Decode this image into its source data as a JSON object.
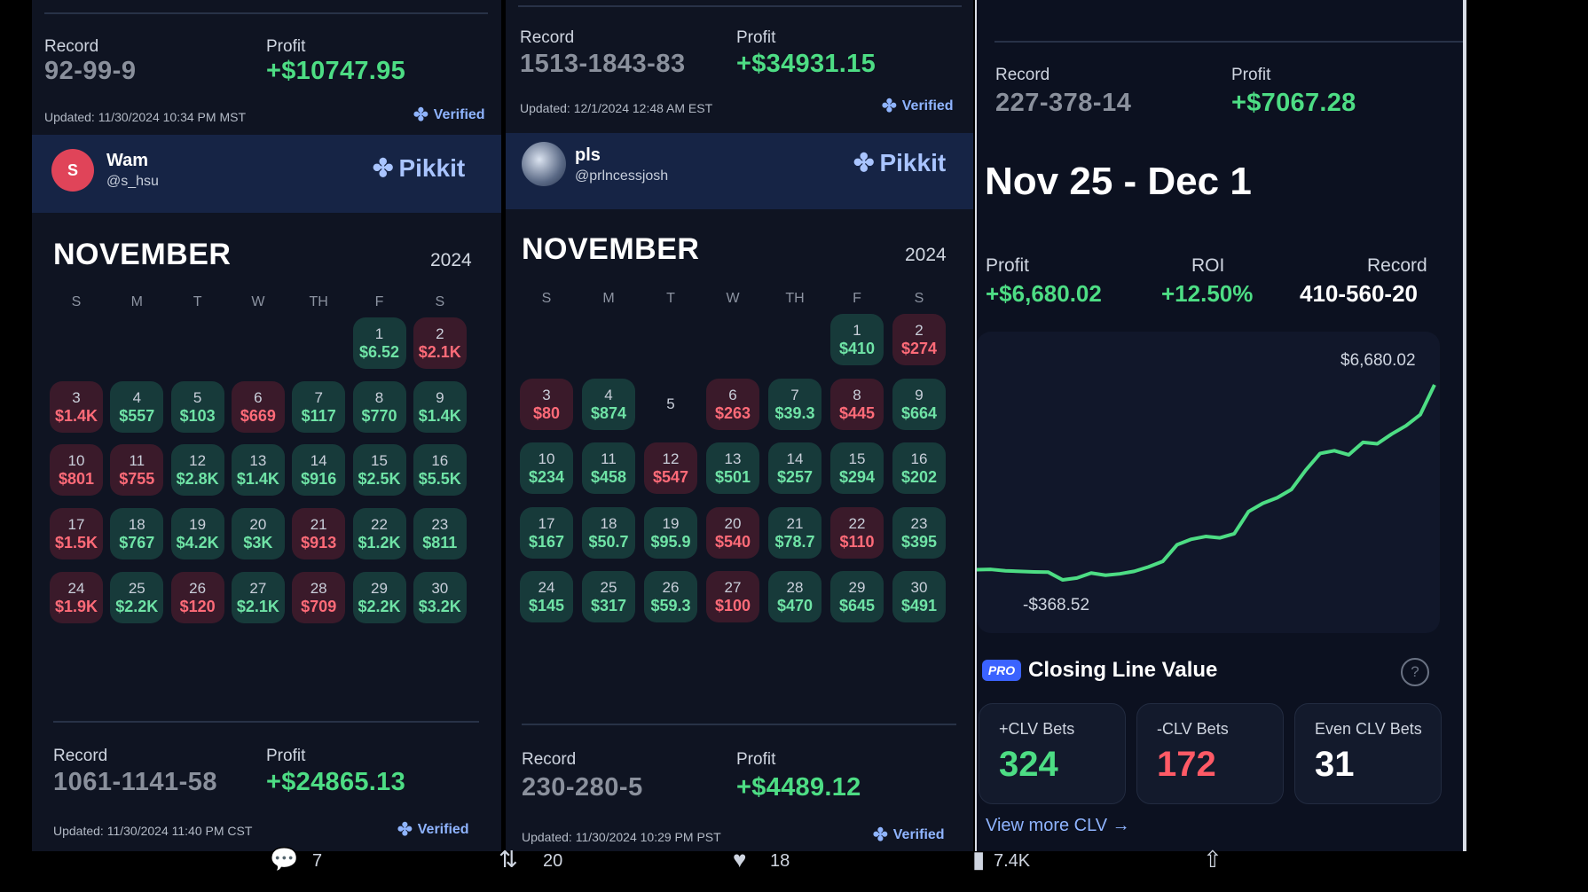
{
  "left_panel": {
    "top_stats": {
      "record_label": "Record",
      "record": "92-99-9",
      "profit_label": "Profit",
      "profit": "+$10747.95",
      "updated": "Updated: 11/30/2024 10:34 PM MST",
      "verified": "Verified"
    },
    "user": {
      "avatar_letter": "S",
      "name": "Wam",
      "handle": "@s_hsu",
      "brand": "Pikkit"
    },
    "calendar": {
      "month": "NOVEMBER",
      "year": "2024",
      "weekdays": [
        "S",
        "M",
        "T",
        "W",
        "TH",
        "F",
        "S"
      ],
      "days": [
        {
          "d": "1",
          "v": "$6.52",
          "s": "g"
        },
        {
          "d": "2",
          "v": "$2.1K",
          "s": "r"
        },
        {
          "d": "3",
          "v": "$1.4K",
          "s": "r"
        },
        {
          "d": "4",
          "v": "$557",
          "s": "g"
        },
        {
          "d": "5",
          "v": "$103",
          "s": "g"
        },
        {
          "d": "6",
          "v": "$669",
          "s": "r"
        },
        {
          "d": "7",
          "v": "$117",
          "s": "g"
        },
        {
          "d": "8",
          "v": "$770",
          "s": "g"
        },
        {
          "d": "9",
          "v": "$1.4K",
          "s": "g"
        },
        {
          "d": "10",
          "v": "$801",
          "s": "r"
        },
        {
          "d": "11",
          "v": "$755",
          "s": "r"
        },
        {
          "d": "12",
          "v": "$2.8K",
          "s": "g"
        },
        {
          "d": "13",
          "v": "$1.4K",
          "s": "g"
        },
        {
          "d": "14",
          "v": "$916",
          "s": "g"
        },
        {
          "d": "15",
          "v": "$2.5K",
          "s": "g"
        },
        {
          "d": "16",
          "v": "$5.5K",
          "s": "g"
        },
        {
          "d": "17",
          "v": "$1.5K",
          "s": "r"
        },
        {
          "d": "18",
          "v": "$767",
          "s": "g"
        },
        {
          "d": "19",
          "v": "$4.2K",
          "s": "g"
        },
        {
          "d": "20",
          "v": "$3K",
          "s": "g"
        },
        {
          "d": "21",
          "v": "$913",
          "s": "r"
        },
        {
          "d": "22",
          "v": "$1.2K",
          "s": "g"
        },
        {
          "d": "23",
          "v": "$811",
          "s": "g"
        },
        {
          "d": "24",
          "v": "$1.9K",
          "s": "r"
        },
        {
          "d": "25",
          "v": "$2.2K",
          "s": "g"
        },
        {
          "d": "26",
          "v": "$120",
          "s": "r"
        },
        {
          "d": "27",
          "v": "$2.1K",
          "s": "g"
        },
        {
          "d": "28",
          "v": "$709",
          "s": "r"
        },
        {
          "d": "29",
          "v": "$2.2K",
          "s": "g"
        },
        {
          "d": "30",
          "v": "$3.2K",
          "s": "g"
        }
      ]
    },
    "bottom_stats": {
      "record_label": "Record",
      "record": "1061-1141-58",
      "profit_label": "Profit",
      "profit": "+$24865.13",
      "updated": "Updated: 11/30/2024 11:40 PM CST",
      "verified": "Verified"
    }
  },
  "middle_panel": {
    "top_stats": {
      "record_label": "Record",
      "record": "1513-1843-83",
      "profit_label": "Profit",
      "profit": "+$34931.15",
      "updated": "Updated: 12/1/2024 12:48 AM EST",
      "verified": "Verified"
    },
    "user": {
      "name": "pls",
      "handle": "@prlncessjosh",
      "brand": "Pikkit"
    },
    "calendar": {
      "month": "NOVEMBER",
      "year": "2024",
      "weekdays": [
        "S",
        "M",
        "T",
        "W",
        "TH",
        "F",
        "S"
      ],
      "days": [
        {
          "d": "1",
          "v": "$410",
          "s": "g"
        },
        {
          "d": "2",
          "v": "$274",
          "s": "r"
        },
        {
          "d": "3",
          "v": "$80",
          "s": "r"
        },
        {
          "d": "4",
          "v": "$874",
          "s": "g"
        },
        {
          "d": "5",
          "v": "",
          "s": "n"
        },
        {
          "d": "6",
          "v": "$263",
          "s": "r"
        },
        {
          "d": "7",
          "v": "$39.3",
          "s": "g"
        },
        {
          "d": "8",
          "v": "$445",
          "s": "r"
        },
        {
          "d": "9",
          "v": "$664",
          "s": "g"
        },
        {
          "d": "10",
          "v": "$234",
          "s": "g"
        },
        {
          "d": "11",
          "v": "$458",
          "s": "g"
        },
        {
          "d": "12",
          "v": "$547",
          "s": "r"
        },
        {
          "d": "13",
          "v": "$501",
          "s": "g"
        },
        {
          "d": "14",
          "v": "$257",
          "s": "g"
        },
        {
          "d": "15",
          "v": "$294",
          "s": "g"
        },
        {
          "d": "16",
          "v": "$202",
          "s": "g"
        },
        {
          "d": "17",
          "v": "$167",
          "s": "g"
        },
        {
          "d": "18",
          "v": "$50.7",
          "s": "g"
        },
        {
          "d": "19",
          "v": "$95.9",
          "s": "g"
        },
        {
          "d": "20",
          "v": "$540",
          "s": "r"
        },
        {
          "d": "21",
          "v": "$78.7",
          "s": "g"
        },
        {
          "d": "22",
          "v": "$110",
          "s": "r"
        },
        {
          "d": "23",
          "v": "$395",
          "s": "g"
        },
        {
          "d": "24",
          "v": "$145",
          "s": "g"
        },
        {
          "d": "25",
          "v": "$317",
          "s": "g"
        },
        {
          "d": "26",
          "v": "$59.3",
          "s": "g"
        },
        {
          "d": "27",
          "v": "$100",
          "s": "r"
        },
        {
          "d": "28",
          "v": "$470",
          "s": "g"
        },
        {
          "d": "29",
          "v": "$645",
          "s": "g"
        },
        {
          "d": "30",
          "v": "$491",
          "s": "g"
        }
      ]
    },
    "bottom_stats": {
      "record_label": "Record",
      "record": "230-280-5",
      "profit_label": "Profit",
      "profit": "+$4489.12",
      "updated": "Updated: 11/30/2024 10:29 PM PST",
      "verified": "Verified"
    }
  },
  "right_panel": {
    "top_stats": {
      "record_label": "Record",
      "record": "227-378-14",
      "profit_label": "Profit",
      "profit": "+$7067.28"
    },
    "range_title": "Nov 25 - Dec 1",
    "summary": {
      "profit_label": "Profit",
      "profit": "+$6,680.02",
      "roi_label": "ROI",
      "roi": "+12.50%",
      "record_label": "Record",
      "record": "410-560-20"
    },
    "chart_data": {
      "type": "line",
      "series": [
        {
          "values": [
            0,
            10,
            -40,
            -60,
            -80,
            -90,
            -368.52,
            -300,
            -120,
            -200,
            -150,
            -60,
            100,
            300,
            900,
            1100,
            1200,
            1150,
            1300,
            2100,
            2400,
            2600,
            2900,
            3600,
            4200,
            4300,
            4150,
            4600,
            4550,
            4900,
            5200,
            5600,
            6680.02
          ]
        }
      ],
      "max_label": "$6,680.02",
      "min_label": "-$368.52"
    },
    "clv": {
      "badge": "PRO",
      "title": "Closing Line Value",
      "help": "?",
      "cards": [
        {
          "label": "+CLV Bets",
          "value": "324",
          "color": "#4ddd84"
        },
        {
          "label": "-CLV Bets",
          "value": "172",
          "color": "#ff5a66"
        },
        {
          "label": "Even CLV Bets",
          "value": "31",
          "color": "#ffffff"
        }
      ],
      "link": "View more CLV →"
    }
  },
  "tweet_bar": {
    "replies": "7",
    "retweets": "20",
    "likes": "18",
    "views": "7.4K"
  },
  "colors": {
    "green": "#4ddd84",
    "red": "#ff6b78",
    "panel": "#0f1422",
    "header": "#162445"
  }
}
